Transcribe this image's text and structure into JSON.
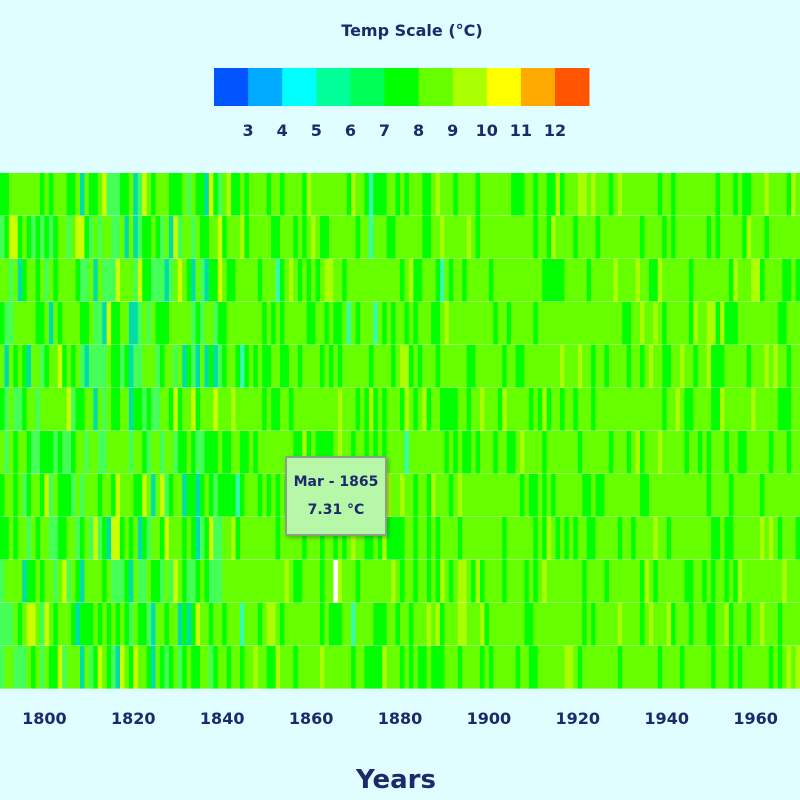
{
  "chart_data": {
    "type": "heatmap",
    "title": "",
    "legend": {
      "title": "Temp Scale (°C)",
      "placement": "top-center",
      "ticks": [
        "3",
        "4",
        "5",
        "6",
        "7",
        "8",
        "9",
        "10",
        "11",
        "12"
      ],
      "colors": [
        "#0055ff",
        "#00aaff",
        "#00ffff",
        "#00ff99",
        "#00ff55",
        "#00ff00",
        "#66ff00",
        "#aaff00",
        "#ffff00",
        "#ffaa00",
        "#ff5500"
      ]
    },
    "xlabel": "Years",
    "ylabel": "",
    "x_range": [
      1790,
      1970
    ],
    "x_ticks": [
      "1800",
      "1820",
      "1840",
      "1860",
      "1880",
      "1900",
      "1920",
      "1940",
      "1960"
    ],
    "rows": 12,
    "highlight": {
      "month": "Mar",
      "year": 1865
    },
    "tooltip": {
      "label": "Mar - 1865",
      "value": "7.31 °C"
    }
  }
}
